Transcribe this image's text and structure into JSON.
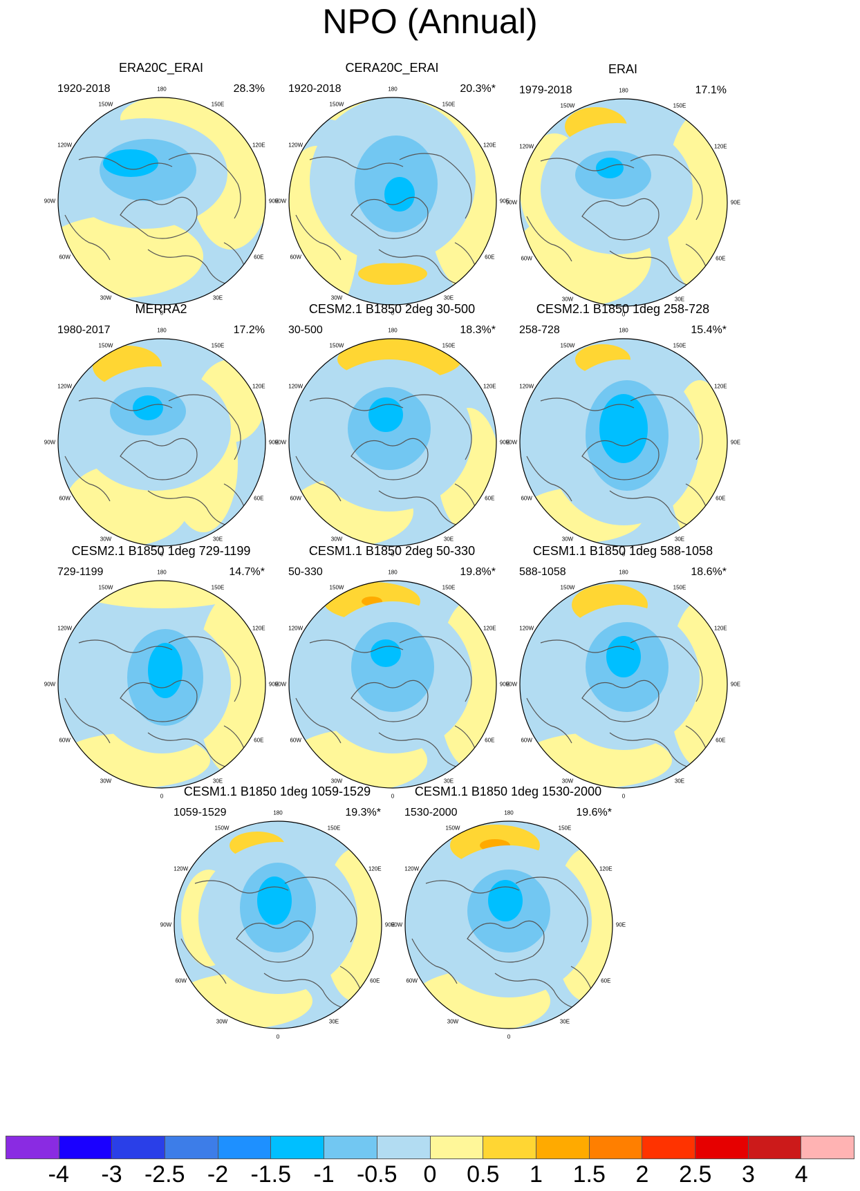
{
  "title": "NPO (Annual)",
  "lon_labels": [
    "180",
    "150E",
    "120E",
    "90E",
    "60E",
    "30E",
    "0",
    "30W",
    "60W",
    "90W",
    "120W",
    "150W"
  ],
  "panels": [
    {
      "name": "ERA20C_ERAI",
      "period": "1920-2018",
      "pct": "28.3%"
    },
    {
      "name": "CERA20C_ERAI",
      "period": "1920-2018",
      "pct": "20.3%*"
    },
    {
      "name": "ERAI",
      "period": "1979-2018",
      "pct": "17.1%"
    },
    {
      "name": "MERRA2",
      "period": "1980-2017",
      "pct": "17.2%"
    },
    {
      "name": "CESM2.1 B1850 2deg 30-500",
      "period": "30-500",
      "pct": "18.3%*"
    },
    {
      "name": "CESM2.1 B1850 1deg 258-728",
      "period": "258-728",
      "pct": "15.4%*"
    },
    {
      "name": "CESM2.1 B1850 1deg 729-1199",
      "period": "729-1199",
      "pct": "14.7%*"
    },
    {
      "name": "CESM1.1 B1850 2deg 50-330",
      "period": "50-330",
      "pct": "19.8%*"
    },
    {
      "name": "CESM1.1 B1850 1deg 588-1058",
      "period": "588-1058",
      "pct": "18.6%*"
    },
    {
      "name": "CESM1.1 B1850 1deg 1059-1529",
      "period": "1059-1529",
      "pct": "19.3%*"
    },
    {
      "name": "CESM1.1 B1850 1deg 1530-2000",
      "period": "1530-2000",
      "pct": "19.6%*"
    }
  ],
  "colors": {
    "land_outline": "#555555",
    "bins": [
      "#8a2be2",
      "#1a00ff",
      "#2a3fe8",
      "#3d7de8",
      "#1e90ff",
      "#00bfff",
      "#72c7f2",
      "#b2dcf2",
      "#fff799",
      "#ffd633",
      "#ffaa00",
      "#ff7f00",
      "#ff3300",
      "#e60000",
      "#cc1a1a",
      "#ffb3b3"
    ]
  },
  "colorbar": {
    "labels": [
      "-4",
      "-3",
      "-2.5",
      "-2",
      "-1.5",
      "-1",
      "-0.5",
      "0",
      "0.5",
      "1",
      "1.5",
      "2",
      "2.5",
      "3",
      "4"
    ]
  }
}
